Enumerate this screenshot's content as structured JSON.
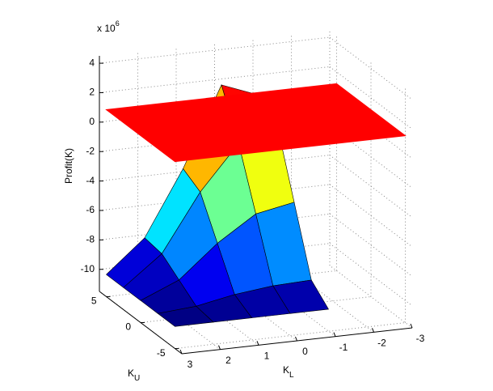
{
  "chart_data": {
    "type": "surface",
    "zlabel": "Profit(K)",
    "exponent_label": {
      "base": "x 10",
      "power": "6"
    },
    "xlabel": {
      "text": "K",
      "sub": "L"
    },
    "ylabel": {
      "text": "K",
      "sub": "U"
    },
    "x": [
      3,
      2,
      1,
      0,
      -1
    ],
    "y": [
      -5,
      -2.5,
      0,
      2.5,
      5
    ],
    "z": [
      [
        -10,
        -10,
        -10,
        -10,
        -10
      ],
      [
        -10,
        -9.8,
        -9.3,
        -9,
        -8.9
      ],
      [
        -10,
        -8.9,
        -6.7,
        -5,
        -4.5
      ],
      [
        -10,
        -8,
        -4.1,
        -1.1,
        -0.1
      ],
      [
        -10,
        -7.8,
        -3.4,
        2,
        1
      ]
    ],
    "colormap": "jet",
    "plane": {
      "z": 1.2,
      "color": "#ff0000"
    },
    "xlim": [
      3,
      -3
    ],
    "xticks": [
      3,
      2,
      1,
      0,
      -1,
      -2,
      -3
    ],
    "ylim": [
      -6,
      6
    ],
    "yticks": [
      -5,
      0,
      5
    ],
    "zlim": [
      -11.5,
      4.5
    ],
    "zticks": [
      -10,
      -8,
      -6,
      -4,
      -2,
      0,
      2,
      4
    ],
    "grid": true
  }
}
